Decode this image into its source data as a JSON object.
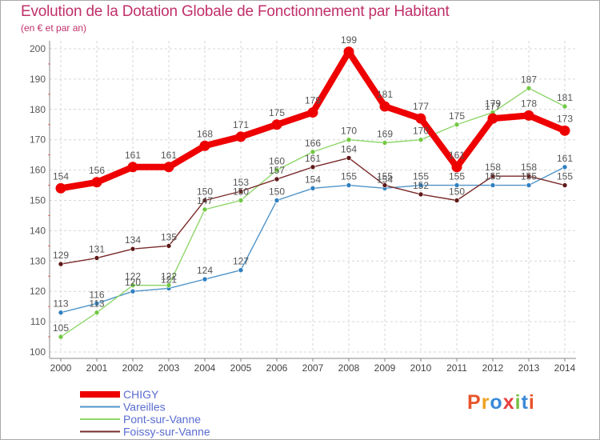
{
  "header": {
    "title": "Evolution de la Dotation Globale de Fonctionnement par Habitant",
    "subtitle": "(en € et par an)"
  },
  "logo": {
    "text": "Proxiti",
    "colors": [
      "#e8542a",
      "#f0a020",
      "#3a8ad8",
      "#e84040",
      "#79c043",
      "#3a8ad8",
      "#e8542a"
    ]
  },
  "chart_data": {
    "type": "line",
    "title": "Evolution de la Dotation Globale de Fonctionnement par Habitant",
    "subtitle": "(en € et par an)",
    "xlabel": "",
    "ylabel": "",
    "ylim": [
      100,
      200
    ],
    "yticks": [
      100,
      110,
      120,
      130,
      140,
      150,
      160,
      170,
      180,
      190,
      200
    ],
    "x": [
      "2000",
      "2001",
      "2002",
      "2003",
      "2004",
      "2005",
      "2006",
      "2007",
      "2008",
      "2009",
      "2010",
      "2011",
      "2012",
      "2013",
      "2014"
    ],
    "grid": true,
    "legend_position": "bottom-left",
    "series": [
      {
        "name": "Vareilles",
        "color": "#4f94c9",
        "marker": "#2f7fc0",
        "emphasis": false,
        "values": [
          113,
          116,
          120,
          121,
          124,
          127,
          150,
          154,
          155,
          154,
          155,
          155,
          155,
          155,
          161
        ],
        "labels": [
          "113",
          "116",
          "120",
          "121",
          "124",
          "127",
          "150",
          "154",
          "155",
          "154",
          "155",
          "155",
          "155",
          "155",
          "161"
        ]
      },
      {
        "name": "Pont-sur-Vanne",
        "color": "#8fd66a",
        "marker": "#72c843",
        "emphasis": false,
        "values": [
          105,
          113,
          122,
          122,
          147,
          150,
          160,
          166,
          170,
          169,
          170,
          175,
          179,
          187,
          181
        ],
        "labels": [
          "105",
          "113",
          "122",
          "122",
          "147",
          "150",
          "160",
          "166",
          "170",
          "169",
          "170",
          "175",
          "179",
          "187",
          "181"
        ]
      },
      {
        "name": "Foissy-sur-Vanne",
        "color": "#7a2a2a",
        "marker": "#601818",
        "emphasis": false,
        "values": [
          129,
          131,
          134,
          135,
          150,
          153,
          157,
          161,
          164,
          155,
          152,
          150,
          158,
          158,
          155
        ],
        "labels": [
          "129",
          "131",
          "134",
          "135",
          "150",
          "153",
          "157",
          "161",
          "164",
          "155",
          "152",
          "150",
          "158",
          "158",
          "155"
        ]
      },
      {
        "name": "CHIGY",
        "color": "#ee0000",
        "marker": "#ee0000",
        "emphasis": true,
        "values": [
          154,
          156,
          161,
          161,
          168,
          171,
          175,
          179,
          199,
          181,
          177,
          161,
          177,
          178,
          173
        ],
        "labels": [
          "154",
          "156",
          "161",
          "161",
          "168",
          "171",
          "175",
          "179",
          "199",
          "181",
          "177",
          "161",
          "177",
          "178",
          "173"
        ]
      }
    ],
    "legend": [
      {
        "name": "CHIGY",
        "color": "#ee0000",
        "text_color": "#5a6cd0",
        "emphasis": true
      },
      {
        "name": "Vareilles",
        "color": "#4f94c9",
        "text_color": "#5a6cd0",
        "emphasis": false
      },
      {
        "name": "Pont-sur-Vanne",
        "color": "#8fd66a",
        "text_color": "#5a6cd0",
        "emphasis": false
      },
      {
        "name": "Foissy-sur-Vanne",
        "color": "#7a2a2a",
        "text_color": "#5a6cd0",
        "emphasis": false
      }
    ]
  }
}
